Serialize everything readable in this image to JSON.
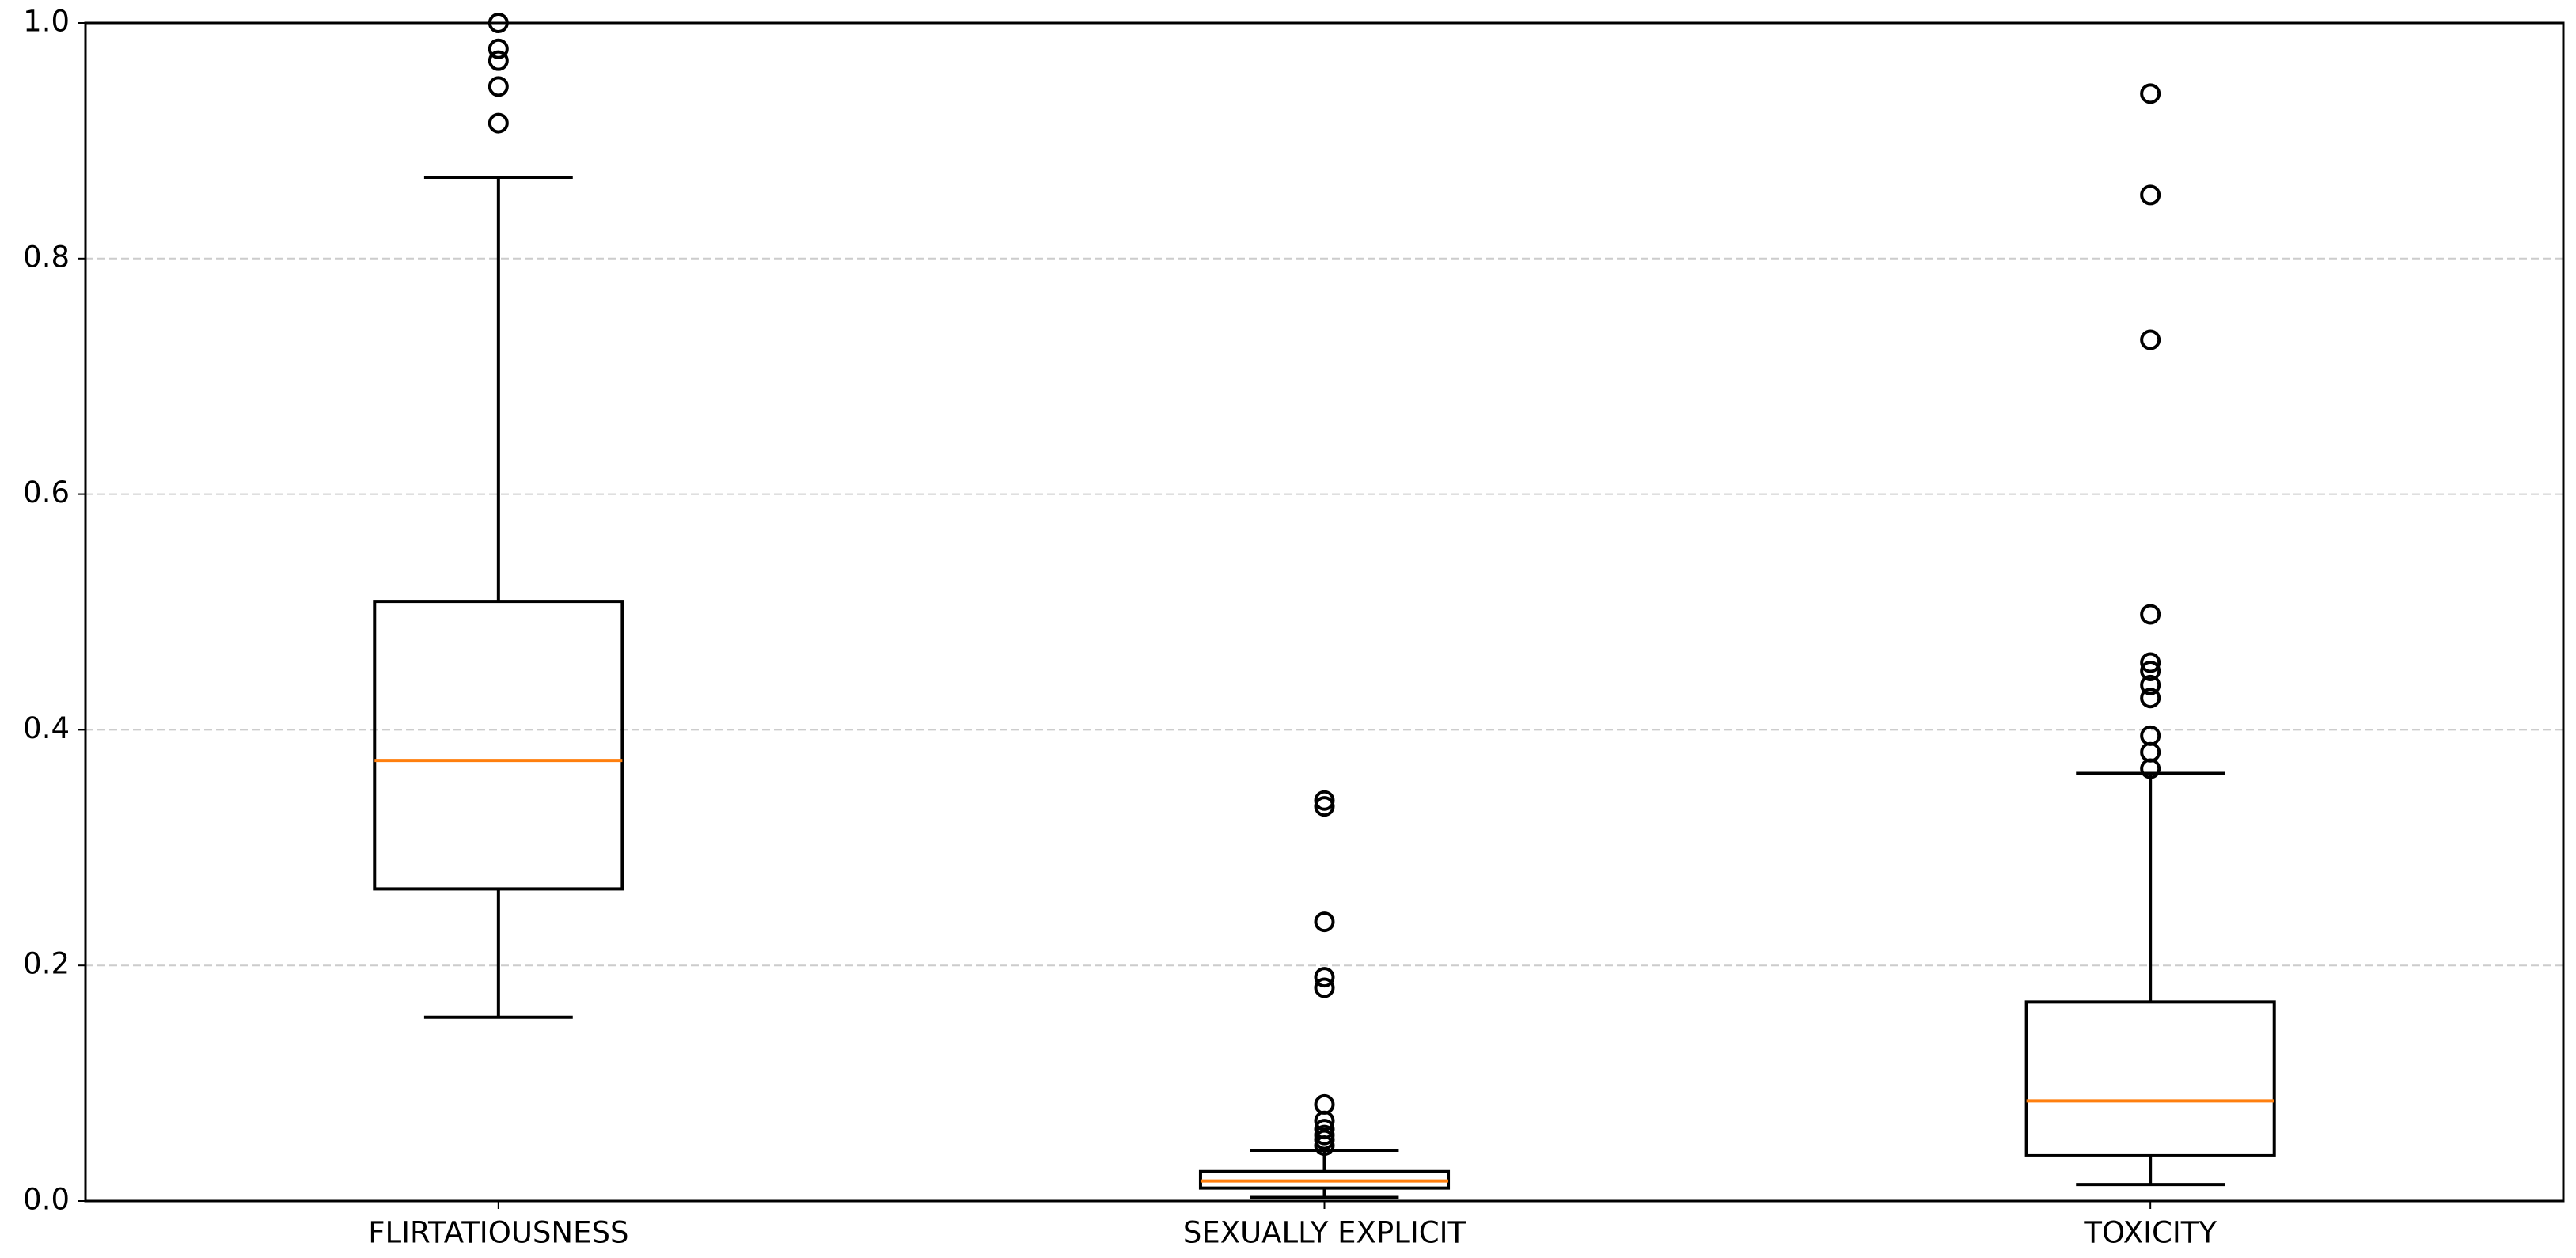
{
  "chart_data": {
    "type": "box",
    "categories": [
      "FLIRTATIOUSNESS",
      "SEXUALLY EXPLICIT",
      "TOXICITY"
    ],
    "boxes": [
      {
        "low": 0.156,
        "q1": 0.265,
        "median": 0.374,
        "q3": 0.509,
        "high": 0.869,
        "outliers": [
          1.0,
          0.978,
          0.968,
          0.946,
          0.915
        ]
      },
      {
        "low": 0.003,
        "q1": 0.011,
        "median": 0.017,
        "q3": 0.025,
        "high": 0.043,
        "outliers": [
          0.34,
          0.335,
          0.237,
          0.19,
          0.181,
          0.082,
          0.068,
          0.061,
          0.056,
          0.052,
          0.047
        ]
      },
      {
        "low": 0.014,
        "q1": 0.039,
        "median": 0.085,
        "q3": 0.169,
        "high": 0.363,
        "outliers": [
          0.94,
          0.854,
          0.731,
          0.498,
          0.457,
          0.45,
          0.438,
          0.427,
          0.395,
          0.381,
          0.367
        ]
      }
    ],
    "box_color": "#000000",
    "median_color": "#ff7f0e",
    "ylim": [
      0,
      1
    ],
    "yticks": [
      {
        "value": 0,
        "label": "0.0"
      },
      0.2,
      0.4,
      0.6,
      0.8,
      {
        "value": 1,
        "label": "1.0"
      }
    ],
    "grid": true
  }
}
